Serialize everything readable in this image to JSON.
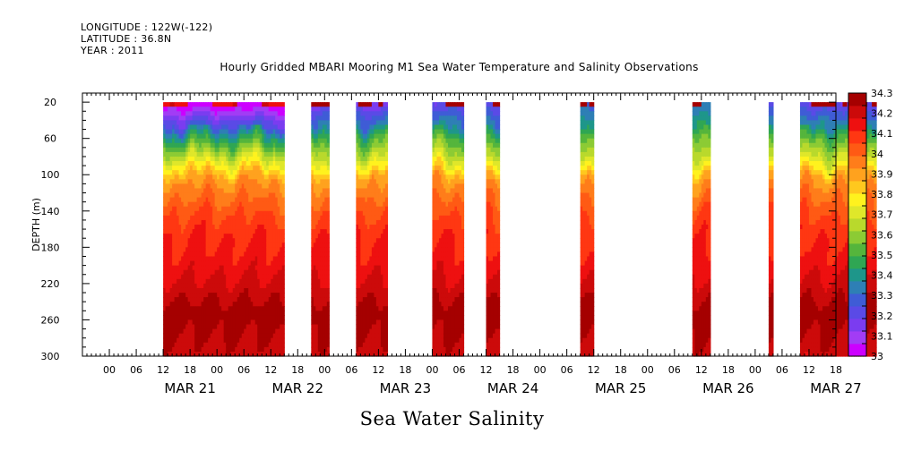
{
  "header": {
    "longitude": "LONGITUDE : 122W(-122)",
    "latitude": "LATITUDE : 36.8N",
    "year": "YEAR : 2011"
  },
  "chart_data": {
    "type": "heatmap",
    "title": "Hourly Gridded MBARI Mooring M1 Sea Water Temperature and Salinity Observations",
    "variable_label": "Sea Water Salinity",
    "ylabel": "DEPTH (m)",
    "ylim": [
      300,
      10
    ],
    "y_ticks": [
      20,
      60,
      100,
      140,
      180,
      220,
      260,
      300
    ],
    "x_hour_labels": [
      "00",
      "06",
      "12",
      "18",
      "00",
      "06",
      "12",
      "18",
      "00",
      "06",
      "12",
      "18",
      "00",
      "06",
      "12",
      "18",
      "00",
      "06",
      "12",
      "18",
      "00",
      "06",
      "12",
      "18",
      "00",
      "06",
      "12",
      "18"
    ],
    "x_day_labels": [
      "MAR 21",
      "MAR 22",
      "MAR 23",
      "MAR 24",
      "MAR 25",
      "MAR 26",
      "MAR 27"
    ],
    "x_range_hours": [
      -12,
      156
    ],
    "depth_range_data": [
      20,
      300
    ],
    "data_segments": [
      {
        "start": 6,
        "end": 33,
        "surface": 33.0
      },
      {
        "start": 39,
        "end": 43,
        "surface": 33.15
      },
      {
        "start": 49,
        "end": 56,
        "surface": 33.15
      },
      {
        "start": 66,
        "end": 73,
        "surface": 33.2
      },
      {
        "start": 78,
        "end": 81,
        "surface": 33.2
      },
      {
        "start": 99,
        "end": 102,
        "surface": 33.3
      },
      {
        "start": 124,
        "end": 128,
        "surface": 33.3
      },
      {
        "start": 141,
        "end": 142,
        "surface": 33.2
      },
      {
        "start": 148,
        "end": 165,
        "surface": 33.2
      }
    ],
    "salinity_profile_depths": [
      20,
      40,
      55,
      70,
      85,
      100,
      120,
      140,
      160,
      200,
      230,
      250,
      270,
      300
    ],
    "salinity_profile_values": [
      33.05,
      33.25,
      33.45,
      33.6,
      33.75,
      33.9,
      33.98,
      34.05,
      34.1,
      34.15,
      34.22,
      34.28,
      34.25,
      34.2
    ],
    "colorbar": {
      "levels": [
        "33",
        "33.1",
        "33.2",
        "33.3",
        "33.4",
        "33.5",
        "33.6",
        "33.7",
        "33.8",
        "33.9",
        "34",
        "34.1",
        "34.2",
        "34.3"
      ],
      "colors": [
        "#cc00ff",
        "#a23cf5",
        "#7b3cf0",
        "#5a4ae6",
        "#3f5cd6",
        "#2e7fb5",
        "#1e968a",
        "#2fa653",
        "#55b53c",
        "#8ccb34",
        "#b9d92c",
        "#dfe72a",
        "#fff21e",
        "#ffc81e",
        "#ffa21e",
        "#ff7d1a",
        "#ff5a14",
        "#ff3712",
        "#ee1010",
        "#cc0a0a",
        "#a50000"
      ]
    }
  }
}
